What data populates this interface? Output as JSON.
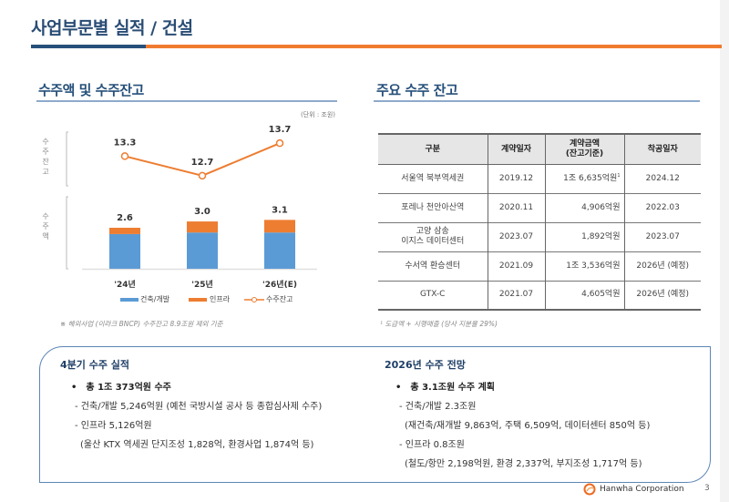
{
  "page": {
    "title": "사업부문별 실적 / 건설",
    "number": "3",
    "company": "Hanwha Corporation"
  },
  "left_section": {
    "title": "수주액 및 수주잔고",
    "unit": "(단위 : 조원)",
    "note": "※ 해외사업 (이라크 BNCP) 수주잔고 8.9조원 제외 기준",
    "group_label_backlog": "수주잔고",
    "group_label_orders": "수주액"
  },
  "chart_data": {
    "type": "bar",
    "categories": [
      "'24년",
      "'25년",
      "'26년(E)"
    ],
    "series": [
      {
        "name": "건축/개발",
        "kind": "stacked-bar",
        "color": "#5b9bd5",
        "values": [
          2.2,
          2.3,
          2.3
        ]
      },
      {
        "name": "인프라",
        "kind": "stacked-bar",
        "color": "#ed7d31",
        "values": [
          0.4,
          0.7,
          0.8
        ]
      },
      {
        "name": "수주잔고",
        "kind": "line",
        "color": "#ed7d31",
        "values": [
          13.3,
          12.7,
          13.7
        ]
      }
    ],
    "bar_totals": [
      "2.6",
      "3.0",
      "3.1"
    ],
    "line_labels": [
      "13.3",
      "12.7",
      "13.7"
    ],
    "legend": [
      "건축/개발",
      "인프라",
      "수주잔고"
    ],
    "legend_position": "bottom",
    "unit": "조원",
    "bar_ylim": [
      0,
      3.5
    ],
    "line_ylim": [
      12.5,
      13.9
    ],
    "grid": false
  },
  "right_section": {
    "title": "주요 수주 잔고",
    "columns": [
      "구분",
      "계약일자",
      "계약금액\n(잔고기준)",
      "착공일자"
    ],
    "column_lines": [
      [
        "구분"
      ],
      [
        "계약일자"
      ],
      [
        "계약금액",
        "(잔고기준)"
      ],
      [
        "착공일자"
      ]
    ],
    "rows": [
      {
        "name": [
          "서울역 북부역세권"
        ],
        "contract_date": "2019.12",
        "amount": "1조 6,635억원",
        "amount_sup": "1",
        "start_date": "2024.12"
      },
      {
        "name": [
          "포레나 천안아산역"
        ],
        "contract_date": "2020.11",
        "amount": "4,906억원",
        "amount_sup": "",
        "start_date": "2022.03"
      },
      {
        "name": [
          "고양 삼송",
          "이지스 데이터센터"
        ],
        "contract_date": "2023.07",
        "amount": "1,892억원",
        "amount_sup": "",
        "start_date": "2023.07"
      },
      {
        "name": [
          "수서역 환승센터"
        ],
        "contract_date": "2021.09",
        "amount": "1조 3,536억원",
        "amount_sup": "",
        "start_date": "2026년 (예정)"
      },
      {
        "name": [
          "GTX-C"
        ],
        "contract_date": "2021.07",
        "amount": "4,605억원",
        "amount_sup": "",
        "start_date": "2026년 (예정)"
      }
    ],
    "note": "¹ 도급액 + 시행매출 (당사 지분율 29%)"
  },
  "summary": {
    "q4": {
      "title": "4분기 수주 실적",
      "bullet": "총 1조 373억원 수주",
      "dash1": "건축/개발 5,246억원 (예천 국방시설 공사 등 종합심사제 수주)",
      "dash2": "인프라 5,126억원",
      "detail2": "(울산 KTX 역세권 단지조성 1,828억, 환경사업 1,874억 등)"
    },
    "outlook": {
      "title": "2026년 수주 전망",
      "bullet": "총 3.1조원 수주 계획",
      "dash1": "건축/개발 2.3조원",
      "detail1": "(재건축/재개발 9,863억, 주택 6,509억, 데이터센터 850억 등)",
      "dash2": "인프라 0.8조원",
      "detail2": "(철도/항만 2,198억원, 환경 2,337억, 부지조성 1,717억 등)"
    }
  }
}
